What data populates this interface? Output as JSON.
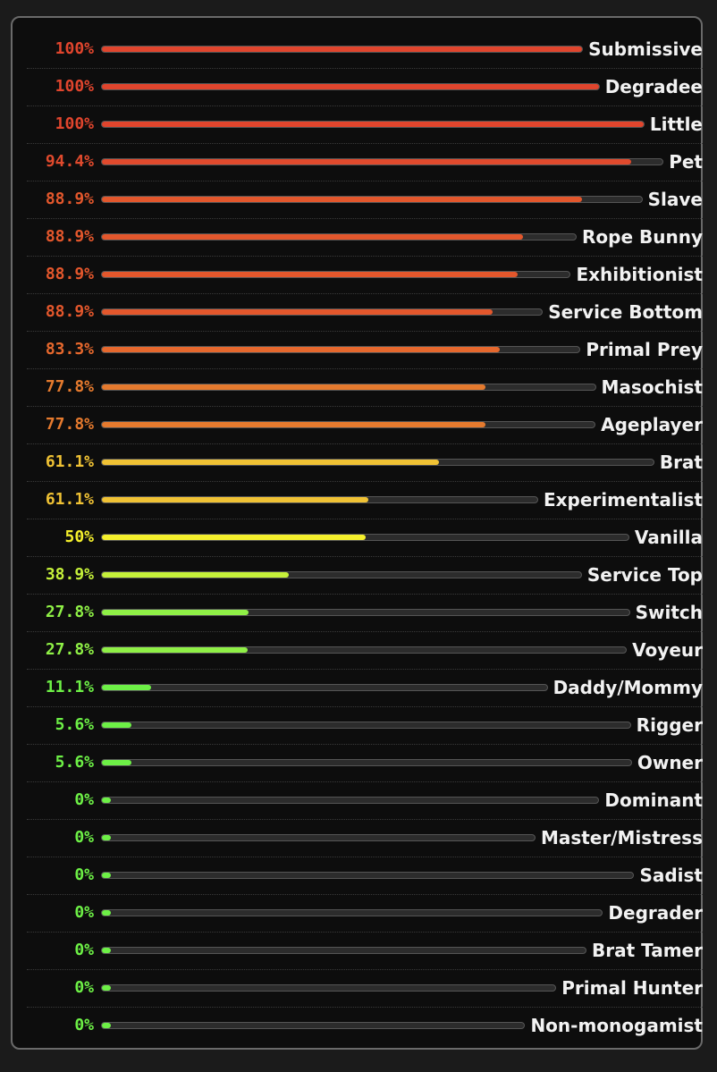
{
  "chart_data": {
    "type": "bar",
    "categories": [
      "Submissive",
      "Degradee",
      "Little",
      "Pet",
      "Slave",
      "Rope Bunny",
      "Exhibitionist",
      "Service Bottom",
      "Primal Prey",
      "Masochist",
      "Ageplayer",
      "Brat",
      "Experimentalist",
      "Vanilla",
      "Service Top",
      "Switch",
      "Voyeur",
      "Daddy/Mommy",
      "Rigger",
      "Owner",
      "Dominant",
      "Master/Mistress",
      "Sadist",
      "Degrader",
      "Brat Tamer",
      "Primal Hunter",
      "Non-monogamist"
    ],
    "values": [
      100,
      100,
      100,
      94.4,
      88.9,
      88.9,
      88.9,
      88.9,
      83.3,
      77.8,
      77.8,
      61.1,
      61.1,
      50,
      38.9,
      27.8,
      27.8,
      11.1,
      5.6,
      5.6,
      0,
      0,
      0,
      0,
      0,
      0,
      0
    ],
    "value_labels": [
      "100%",
      "100%",
      "100%",
      "94.4%",
      "88.9%",
      "88.9%",
      "88.9%",
      "88.9%",
      "83.3%",
      "77.8%",
      "77.8%",
      "61.1%",
      "61.1%",
      "50%",
      "38.9%",
      "27.8%",
      "27.8%",
      "11.1%",
      "5.6%",
      "5.6%",
      "0%",
      "0%",
      "0%",
      "0%",
      "0%",
      "0%",
      "0%"
    ],
    "colors": [
      "#e0452d",
      "#e0452d",
      "#e0452d",
      "#e04a2d",
      "#e3572c",
      "#e3572c",
      "#e3572c",
      "#e3572c",
      "#e6682d",
      "#e57a2e",
      "#e57a2e",
      "#f0c234",
      "#f0c234",
      "#f5f02c",
      "#c5f03a",
      "#8ff046",
      "#8ff046",
      "#6df046",
      "#6df046",
      "#6df046",
      "#6df046",
      "#6df046",
      "#6df046",
      "#6df046",
      "#6df046",
      "#6df046",
      "#6df046"
    ],
    "xlim": [
      0,
      100
    ]
  }
}
